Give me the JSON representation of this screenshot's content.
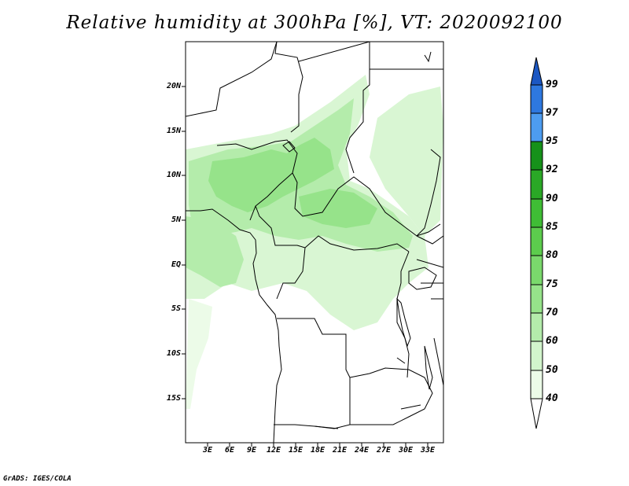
{
  "title": "Relative humidity at 300hPa [%], VT: 2020092100",
  "footer": "GrADS: IGES/COLA",
  "map": {
    "lat_labels": [
      "20N",
      "15N",
      "10N",
      "5N",
      "EQ",
      "5S",
      "10S",
      "15S"
    ],
    "lon_labels": [
      "3E",
      "6E",
      "9E",
      "12E",
      "15E",
      "18E",
      "21E",
      "24E",
      "27E",
      "30E",
      "33E"
    ]
  },
  "colorbar": {
    "levels": [
      "40",
      "50",
      "60",
      "70",
      "75",
      "80",
      "85",
      "90",
      "92",
      "95",
      "97",
      "99"
    ],
    "colors": [
      "#ecfbe8",
      "#d2f5cc",
      "#b4ecab",
      "#96e38a",
      "#7ad86c",
      "#5ccc4d",
      "#3fbd35",
      "#2aa826",
      "#16911a",
      "#4d9cf0",
      "#2e78df",
      "#1b57c3"
    ],
    "under_color": "#ffffff",
    "over_color": "#1b57c3"
  }
}
